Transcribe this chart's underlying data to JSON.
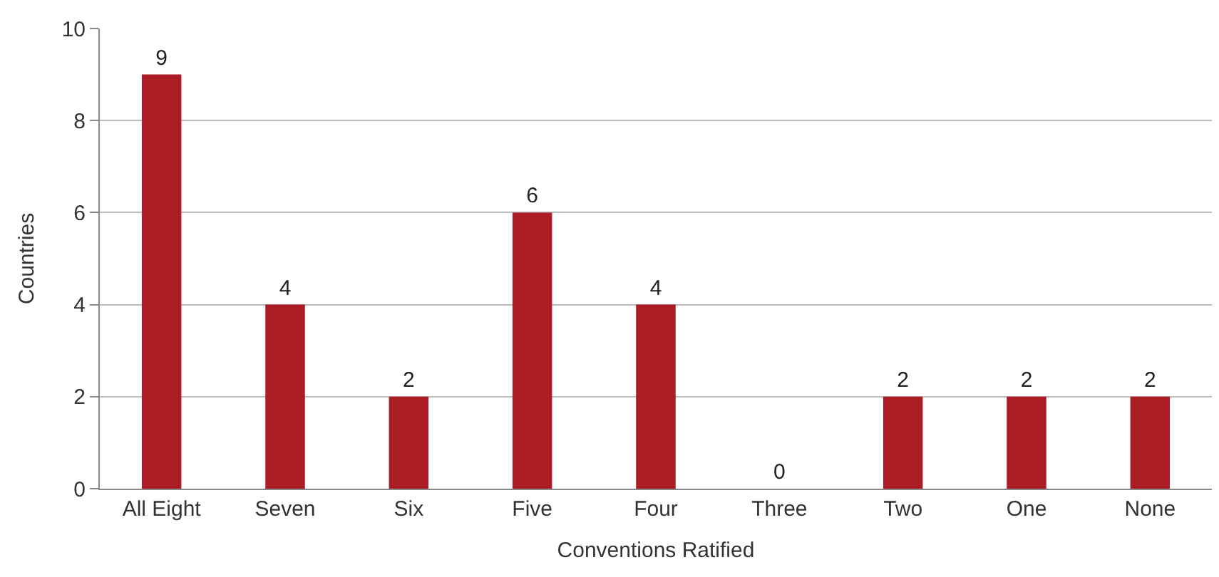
{
  "chart_data": {
    "type": "bar",
    "xlabel": "Conventions Ratified",
    "ylabel": "Countries",
    "categories": [
      "All Eight",
      "Seven",
      "Six",
      "Five",
      "Four",
      "Three",
      "Two",
      "One",
      "None"
    ],
    "values": [
      9,
      4,
      2,
      6,
      4,
      0,
      2,
      2,
      2
    ],
    "color": "#ab1c24",
    "ylim": [
      0,
      10
    ],
    "yticks": [
      0,
      2,
      4,
      6,
      8,
      10
    ],
    "grid": "y",
    "data_labels": true
  }
}
